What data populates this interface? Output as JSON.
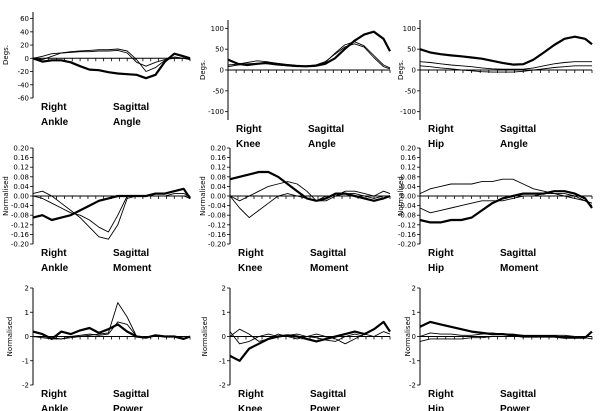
{
  "chart_data": [
    {
      "type": "line",
      "labels": [
        "Right",
        "Ankle",
        "Sagittal",
        "Angle"
      ],
      "ylabel": "Degs.",
      "ylim": [
        -60,
        70
      ],
      "yticks": [
        -60,
        -40,
        -20,
        0,
        20,
        40,
        60
      ],
      "x": [
        0,
        6,
        12,
        18,
        24,
        30,
        36,
        42,
        48,
        54,
        60,
        66,
        72,
        78,
        84,
        90,
        96,
        100
      ],
      "series": [
        {
          "values": [
            0,
            -5,
            -3,
            -3,
            -6,
            -12,
            -17,
            -18,
            -21,
            -23,
            -24,
            -25,
            -30,
            -25,
            -5,
            7,
            3,
            0
          ]
        },
        {
          "values": [
            0,
            3,
            7,
            8,
            9,
            10,
            10,
            11,
            11,
            12,
            8,
            -6,
            -12,
            -6,
            -2,
            0,
            0,
            -2
          ]
        },
        {
          "values": [
            0,
            -2,
            3,
            8,
            10,
            11,
            12,
            13,
            13,
            14,
            11,
            -2,
            -20,
            -14,
            -3,
            2,
            0,
            -2
          ]
        }
      ]
    },
    {
      "type": "line",
      "labels": [
        "Right",
        "Knee",
        "Sagittal",
        "Angle"
      ],
      "ylabel": "Degs.",
      "ylim": [
        -120,
        120
      ],
      "yticks": [
        -100,
        -50,
        0,
        50,
        100
      ],
      "x": [
        0,
        6,
        12,
        18,
        24,
        30,
        36,
        42,
        48,
        54,
        60,
        66,
        72,
        78,
        84,
        90,
        96,
        100
      ],
      "series": [
        {
          "values": [
            25,
            15,
            12,
            15,
            17,
            15,
            12,
            10,
            9,
            10,
            15,
            28,
            50,
            70,
            85,
            92,
            75,
            45
          ]
        },
        {
          "values": [
            12,
            14,
            18,
            22,
            20,
            16,
            12,
            10,
            10,
            12,
            20,
            38,
            55,
            63,
            55,
            30,
            8,
            3
          ]
        },
        {
          "values": [
            8,
            12,
            15,
            16,
            15,
            12,
            10,
            8,
            8,
            10,
            18,
            40,
            60,
            68,
            58,
            35,
            12,
            5
          ]
        }
      ]
    },
    {
      "type": "line",
      "labels": [
        "Right",
        "Hip",
        "Sagittal",
        "Angle"
      ],
      "ylabel": "Degs.",
      "ylim": [
        -120,
        120
      ],
      "yticks": [
        -100,
        -50,
        0,
        50,
        100
      ],
      "x": [
        0,
        6,
        12,
        18,
        24,
        30,
        36,
        42,
        48,
        54,
        60,
        66,
        72,
        78,
        84,
        90,
        96,
        100
      ],
      "series": [
        {
          "values": [
            50,
            42,
            38,
            35,
            33,
            30,
            27,
            22,
            17,
            13,
            14,
            25,
            42,
            60,
            75,
            80,
            75,
            62
          ]
        },
        {
          "values": [
            20,
            18,
            15,
            12,
            10,
            8,
            5,
            3,
            2,
            2,
            2,
            5,
            10,
            15,
            18,
            20,
            20,
            20
          ]
        },
        {
          "values": [
            10,
            8,
            5,
            3,
            0,
            -2,
            -4,
            -5,
            -5,
            -5,
            -3,
            0,
            3,
            6,
            8,
            10,
            10,
            10
          ]
        }
      ]
    },
    {
      "type": "line",
      "labels": [
        "Right",
        "Ankle",
        "Sagittal",
        "Moment"
      ],
      "ylabel": "Normalised",
      "ylim": [
        -0.2,
        0.2
      ],
      "yticks": [
        -0.2,
        -0.16,
        -0.12,
        -0.08,
        -0.04,
        0.0,
        0.04,
        0.08,
        0.12,
        0.16,
        0.2
      ],
      "ytick_labels": [
        "-0.20",
        "-0.16",
        "-0.12",
        "-0.08",
        "-0.04",
        "0.00",
        "0.04",
        "0.08",
        "0.12",
        "0.16",
        "0.20"
      ],
      "x": [
        0,
        6,
        12,
        18,
        24,
        30,
        36,
        42,
        48,
        54,
        60,
        66,
        72,
        78,
        84,
        90,
        96,
        100
      ],
      "series": [
        {
          "values": [
            -0.09,
            -0.08,
            -0.1,
            -0.09,
            -0.08,
            -0.06,
            -0.04,
            -0.02,
            -0.01,
            0.0,
            0.0,
            0.0,
            0.0,
            0.01,
            0.01,
            0.02,
            0.03,
            -0.01
          ]
        },
        {
          "values": [
            0.01,
            0.02,
            0.0,
            -0.03,
            -0.06,
            -0.09,
            -0.13,
            -0.17,
            -0.18,
            -0.12,
            -0.01,
            0.0,
            0.0,
            0.0,
            0.0,
            0.01,
            0.01,
            0.0
          ]
        },
        {
          "values": [
            0.0,
            -0.01,
            -0.03,
            -0.05,
            -0.07,
            -0.08,
            -0.1,
            -0.13,
            -0.15,
            -0.08,
            0.0,
            0.0,
            0.0,
            0.0,
            0.0,
            0.0,
            0.0,
            -0.01
          ]
        }
      ]
    },
    {
      "type": "line",
      "labels": [
        "Right",
        "Knee",
        "Sagittal",
        "Moment"
      ],
      "ylabel": "Normalised",
      "ylim": [
        -0.2,
        0.2
      ],
      "yticks": [
        -0.2,
        -0.16,
        -0.12,
        -0.08,
        -0.04,
        0.0,
        0.04,
        0.08,
        0.12,
        0.16,
        0.2
      ],
      "ytick_labels": [
        "-0.20",
        "-0.16",
        "-0.12",
        "-0.08",
        "-0.04",
        "0.00",
        "0.04",
        "0.08",
        "0.12",
        "0.16",
        "0.20"
      ],
      "x": [
        0,
        6,
        12,
        18,
        24,
        30,
        36,
        42,
        48,
        54,
        60,
        66,
        72,
        78,
        84,
        90,
        96,
        100
      ],
      "series": [
        {
          "values": [
            0.07,
            0.08,
            0.09,
            0.1,
            0.1,
            0.08,
            0.05,
            0.02,
            -0.01,
            -0.02,
            -0.01,
            0.01,
            0.01,
            0.0,
            -0.01,
            -0.02,
            -0.01,
            0.0
          ]
        },
        {
          "values": [
            0.0,
            -0.02,
            0.0,
            0.02,
            0.04,
            0.05,
            0.06,
            0.05,
            0.02,
            -0.02,
            -0.02,
            0.0,
            0.02,
            0.02,
            0.01,
            0.0,
            0.02,
            0.01
          ]
        },
        {
          "values": [
            0.0,
            -0.05,
            -0.09,
            -0.06,
            -0.03,
            0.0,
            0.01,
            0.0,
            -0.01,
            -0.02,
            0.0,
            0.0,
            0.01,
            0.01,
            0.0,
            -0.01,
            0.0,
            0.0
          ]
        }
      ]
    },
    {
      "type": "line",
      "labels": [
        "Right",
        "Hip",
        "Sagittal",
        "Moment"
      ],
      "ylabel": "Normalised",
      "ylim": [
        -0.2,
        0.2
      ],
      "yticks": [
        -0.2,
        -0.16,
        -0.12,
        -0.08,
        -0.04,
        0.0,
        0.04,
        0.08,
        0.12,
        0.16,
        0.2
      ],
      "ytick_labels": [
        "-0.20",
        "-0.16",
        "-0.12",
        "-0.08",
        "-0.04",
        "0.00",
        "0.04",
        "0.08",
        "0.12",
        "0.16",
        "0.20"
      ],
      "x": [
        0,
        6,
        12,
        18,
        24,
        30,
        36,
        42,
        48,
        54,
        60,
        66,
        72,
        78,
        84,
        90,
        96,
        100
      ],
      "series": [
        {
          "values": [
            -0.1,
            -0.11,
            -0.11,
            -0.1,
            -0.1,
            -0.09,
            -0.06,
            -0.03,
            -0.01,
            0.0,
            0.01,
            0.01,
            0.01,
            0.02,
            0.02,
            0.01,
            -0.01,
            -0.05
          ]
        },
        {
          "values": [
            0.01,
            0.03,
            0.04,
            0.05,
            0.05,
            0.05,
            0.06,
            0.06,
            0.07,
            0.07,
            0.05,
            0.03,
            0.02,
            0.01,
            0.0,
            -0.01,
            -0.02,
            -0.03
          ]
        },
        {
          "values": [
            -0.05,
            -0.07,
            -0.06,
            -0.05,
            -0.04,
            -0.03,
            -0.02,
            -0.02,
            -0.02,
            -0.01,
            0.0,
            0.0,
            0.01,
            0.01,
            0.01,
            0.0,
            -0.02,
            -0.04
          ]
        }
      ]
    },
    {
      "type": "line",
      "labels": [
        "Right",
        "Ankle",
        "Sagittal",
        "Power"
      ],
      "ylabel": "Normalised",
      "ylim": [
        -2,
        2
      ],
      "yticks": [
        -2,
        -1,
        0,
        1,
        2
      ],
      "x": [
        0,
        6,
        12,
        18,
        24,
        30,
        36,
        42,
        48,
        54,
        60,
        66,
        72,
        78,
        84,
        90,
        96,
        100
      ],
      "series": [
        {
          "values": [
            0.2,
            0.1,
            -0.1,
            0.2,
            0.1,
            0.25,
            0.35,
            0.15,
            0.3,
            0.5,
            0.2,
            0.0,
            -0.05,
            0.05,
            0.0,
            0.0,
            -0.1,
            0.0
          ]
        },
        {
          "values": [
            0.0,
            -0.05,
            -0.1,
            -0.1,
            -0.05,
            0.0,
            0.05,
            0.1,
            0.15,
            1.4,
            0.8,
            0.0,
            0.0,
            0.0,
            0.0,
            0.0,
            0.0,
            0.0
          ]
        },
        {
          "values": [
            0.0,
            0.0,
            -0.05,
            -0.1,
            0.0,
            0.05,
            0.1,
            0.05,
            0.1,
            0.6,
            0.5,
            0.0,
            0.0,
            0.0,
            0.0,
            0.0,
            0.0,
            0.0
          ]
        }
      ]
    },
    {
      "type": "line",
      "labels": [
        "Right",
        "Knee",
        "Sagittal",
        "Power"
      ],
      "ylabel": "Normalised",
      "ylim": [
        -2,
        2
      ],
      "yticks": [
        -2,
        -1,
        0,
        1,
        2
      ],
      "x": [
        0,
        6,
        12,
        18,
        24,
        30,
        36,
        42,
        48,
        54,
        60,
        66,
        72,
        78,
        84,
        90,
        96,
        100
      ],
      "series": [
        {
          "values": [
            -0.8,
            -1.0,
            -0.5,
            -0.3,
            -0.1,
            0.0,
            0.05,
            0.0,
            -0.1,
            -0.2,
            -0.1,
            0.0,
            0.1,
            0.2,
            0.1,
            0.3,
            0.6,
            0.2
          ]
        },
        {
          "values": [
            0.0,
            0.3,
            0.1,
            -0.2,
            -0.1,
            0.1,
            0.0,
            -0.1,
            0.0,
            0.1,
            0.0,
            -0.1,
            -0.3,
            -0.1,
            0.1,
            0.0,
            0.2,
            0.1
          ]
        },
        {
          "values": [
            0.2,
            -0.3,
            -0.2,
            0.0,
            0.1,
            0.0,
            0.05,
            0.1,
            0.0,
            -0.05,
            -0.15,
            -0.2,
            0.0,
            0.1,
            0.0,
            0.0,
            0.0,
            0.0
          ]
        }
      ]
    },
    {
      "type": "line",
      "labels": [
        "Right",
        "Hip",
        "Sagittal",
        "Power"
      ],
      "ylabel": "Normalised",
      "ylim": [
        -2,
        2
      ],
      "yticks": [
        -2,
        -1,
        0,
        1,
        2
      ],
      "x": [
        0,
        6,
        12,
        18,
        24,
        30,
        36,
        42,
        48,
        54,
        60,
        66,
        72,
        78,
        84,
        90,
        96,
        100
      ],
      "series": [
        {
          "values": [
            0.4,
            0.6,
            0.5,
            0.4,
            0.3,
            0.2,
            0.15,
            0.1,
            0.1,
            0.05,
            0.0,
            0.0,
            0.0,
            0.0,
            -0.05,
            -0.05,
            -0.05,
            0.2
          ]
        },
        {
          "values": [
            0.0,
            0.15,
            0.1,
            0.1,
            0.05,
            0.05,
            0.1,
            0.15,
            0.1,
            0.1,
            0.05,
            0.0,
            0.0,
            0.0,
            0.0,
            0.0,
            0.0,
            0.0
          ]
        },
        {
          "values": [
            -0.2,
            -0.1,
            -0.1,
            -0.1,
            -0.1,
            -0.05,
            -0.05,
            0.0,
            0.0,
            0.0,
            0.05,
            0.05,
            0.05,
            0.05,
            0.05,
            0.0,
            -0.05,
            -0.1
          ]
        }
      ]
    }
  ]
}
